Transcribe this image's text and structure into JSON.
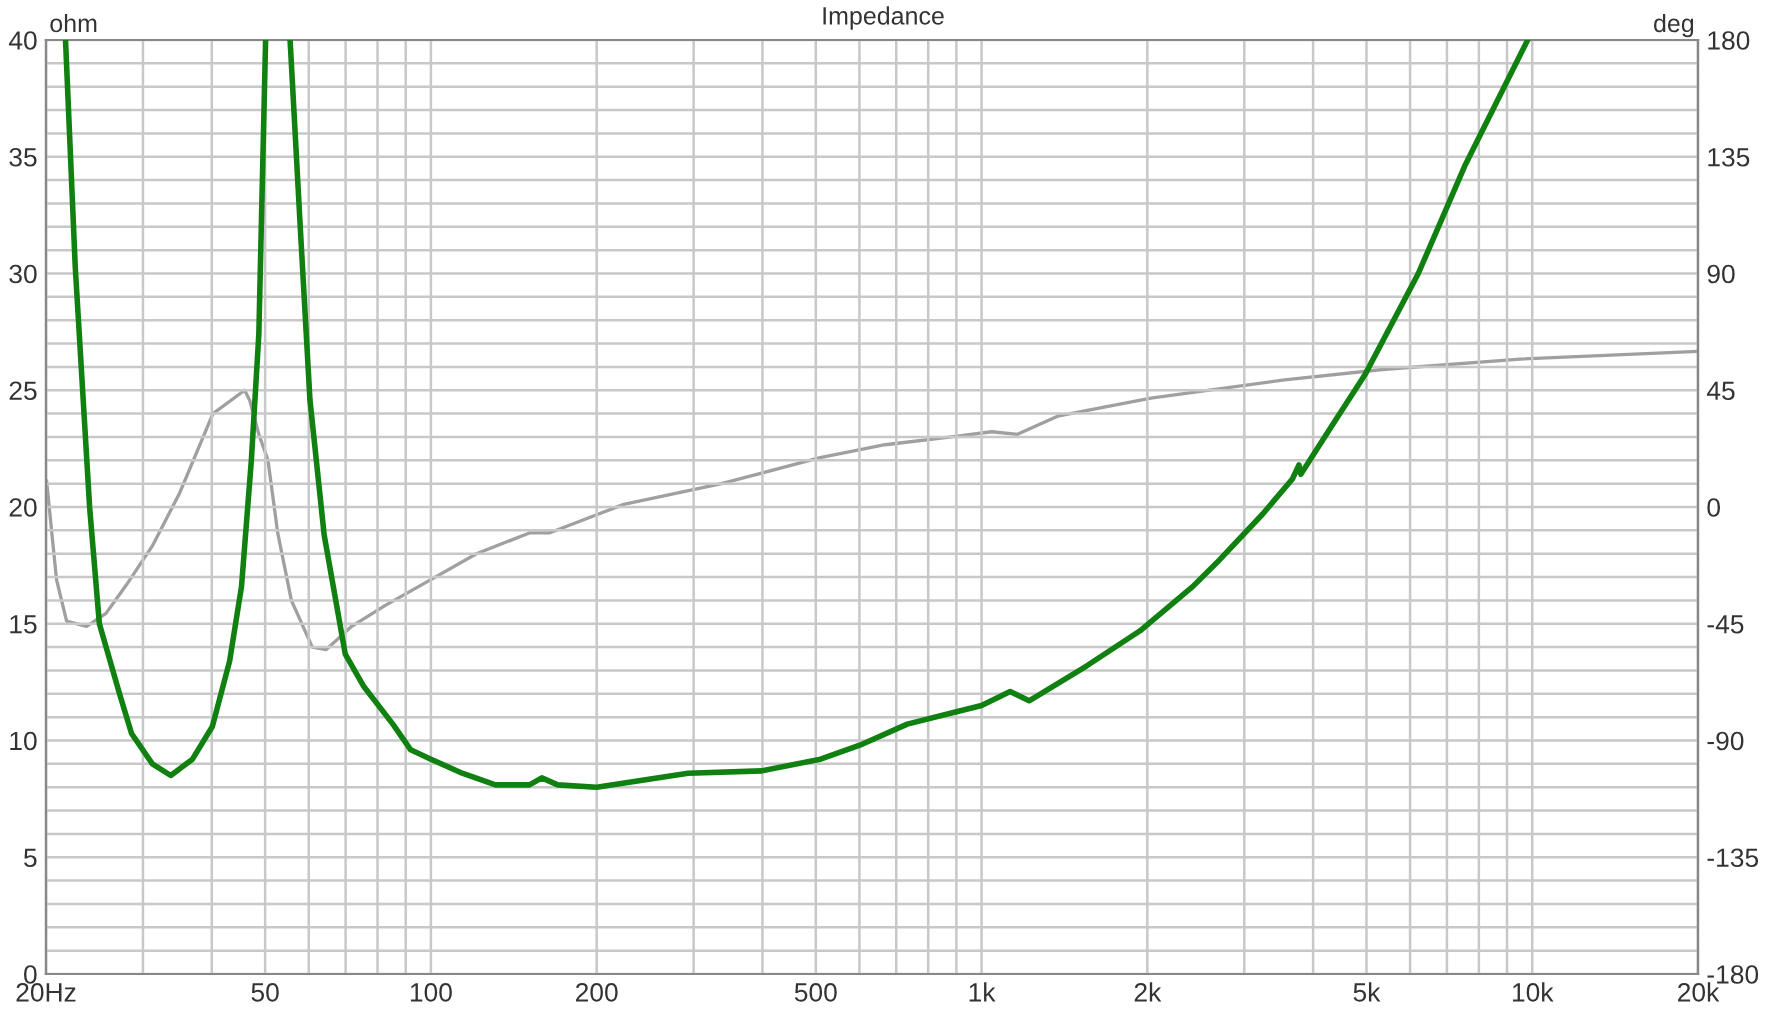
{
  "chart_data": {
    "type": "line",
    "title": "Impedance",
    "ylabel": "ohm",
    "y2label": "deg",
    "log": "x",
    "grid": true,
    "line_style": "solid",
    "marker": "none",
    "xlim": [
      20,
      20000
    ],
    "xticks": [
      {
        "value": 20,
        "label": "20Hz"
      },
      {
        "value": 30,
        "label": null
      },
      {
        "value": 40,
        "label": null
      },
      50,
      {
        "value": 60,
        "label": null
      },
      {
        "value": 70,
        "label": null
      },
      {
        "value": 80,
        "label": null
      },
      {
        "value": 90,
        "label": null
      },
      100,
      200,
      {
        "value": 300,
        "label": null
      },
      {
        "value": 400,
        "label": null
      },
      500,
      {
        "value": 600,
        "label": null
      },
      {
        "value": 700,
        "label": null
      },
      {
        "value": 800,
        "label": null
      },
      {
        "value": 900,
        "label": null
      },
      {
        "value": 1000,
        "label": "1k"
      },
      {
        "value": 2000,
        "label": "2k"
      },
      {
        "value": 3000,
        "label": null
      },
      {
        "value": 4000,
        "label": null
      },
      {
        "value": 5000,
        "label": "5k"
      },
      {
        "value": 6000,
        "label": null
      },
      {
        "value": 7000,
        "label": null
      },
      {
        "value": 8000,
        "label": null
      },
      {
        "value": 9000,
        "label": null
      },
      {
        "value": 10000,
        "label": "10k"
      },
      {
        "value": 20000,
        "label": "20k"
      }
    ],
    "ylim": [
      0,
      40
    ],
    "yticks": [
      0,
      {
        "value": 1,
        "label": null
      },
      {
        "value": 2,
        "label": null
      },
      {
        "value": 3,
        "label": null
      },
      {
        "value": 4,
        "label": null
      },
      5,
      {
        "value": 6,
        "label": null
      },
      {
        "value": 7,
        "label": null
      },
      {
        "value": 8,
        "label": null
      },
      {
        "value": 9,
        "label": null
      },
      10,
      {
        "value": 11,
        "label": null
      },
      {
        "value": 12,
        "label": null
      },
      {
        "value": 13,
        "label": null
      },
      {
        "value": 14,
        "label": null
      },
      15,
      {
        "value": 16,
        "label": null
      },
      {
        "value": 17,
        "label": null
      },
      {
        "value": 18,
        "label": null
      },
      {
        "value": 19,
        "label": null
      },
      20,
      {
        "value": 21,
        "label": null
      },
      {
        "value": 22,
        "label": null
      },
      {
        "value": 23,
        "label": null
      },
      {
        "value": 24,
        "label": null
      },
      25,
      {
        "value": 26,
        "label": null
      },
      {
        "value": 27,
        "label": null
      },
      {
        "value": 28,
        "label": null
      },
      {
        "value": 29,
        "label": null
      },
      30,
      {
        "value": 31,
        "label": null
      },
      {
        "value": 32,
        "label": null
      },
      {
        "value": 33,
        "label": null
      },
      {
        "value": 34,
        "label": null
      },
      35,
      {
        "value": 36,
        "label": null
      },
      {
        "value": 37,
        "label": null
      },
      {
        "value": 38,
        "label": null
      },
      {
        "value": 39,
        "label": null
      },
      40
    ],
    "y2lim": [
      -180,
      180
    ],
    "y2ticks": [
      -180,
      -135,
      -90,
      -45,
      0,
      45,
      90,
      135,
      180
    ],
    "series": [
      {
        "color": "#108010",
        "x": [
          21.7,
          22.6,
          24.0,
          25.0,
          27.2,
          28.6,
          31.2,
          33.7,
          36.9,
          40.1,
          43.1,
          45.3,
          47.2,
          48.7,
          50.1,
          52.8,
          55.5,
          58.0,
          60.3,
          64.0,
          69.9,
          75.6,
          85.3,
          91.9,
          100,
          114,
          131,
          151,
          159,
          170,
          200,
          293,
          399,
          510,
          601,
          733,
          889,
          1000,
          1127,
          1220,
          1553,
          1940,
          2420,
          2670,
          3240,
          3668,
          3770,
          3800,
          4333,
          4978,
          6210,
          7540,
          9810
        ],
        "values": [
          40,
          30.3,
          20,
          15,
          12,
          10.3,
          9,
          8.5,
          9.2,
          10.6,
          13.4,
          16.6,
          22,
          27.4,
          40,
          null,
          40,
          31.7,
          24.6,
          18.8,
          13.7,
          12.3,
          10.7,
          9.6,
          9.2,
          8.6,
          8.1,
          8.1,
          8.4,
          8.1,
          8.0,
          8.6,
          8.7,
          9.2,
          9.8,
          10.7,
          11.2,
          11.5,
          12.1,
          11.7,
          13.2,
          14.7,
          16.6,
          17.6,
          19.7,
          21.2,
          21.8,
          21.4,
          23.5,
          25.7,
          30,
          34.6,
          40
        ]
      },
      {
        "color": "#a0a0a0",
        "axis": "y2",
        "x": [
          20.05,
          20.9,
          21.8,
          23.7,
          25.7,
          28.0,
          31.2,
          34.9,
          40.2,
          45.9,
          46.9,
          48.7,
          50.6,
          52.7,
          55.8,
          60.9,
          64.5,
          71.8,
          82.5,
          100,
          121,
          151,
          164,
          200,
          224,
          337,
          509,
          668,
          882,
          1044,
          1162,
          1374,
          2030,
          3550,
          5350,
          9500,
          20000
        ],
        "values": [
          10,
          -28,
          -44,
          -46,
          -41,
          -30,
          -15,
          5,
          36,
          45,
          41,
          28,
          18,
          -10,
          -36,
          -54,
          -55,
          -46,
          -38,
          -28,
          -18,
          -10,
          -10,
          -3,
          1,
          9,
          19,
          24,
          27,
          29,
          28,
          35,
          42,
          49,
          53,
          57,
          60
        ]
      }
    ]
  }
}
